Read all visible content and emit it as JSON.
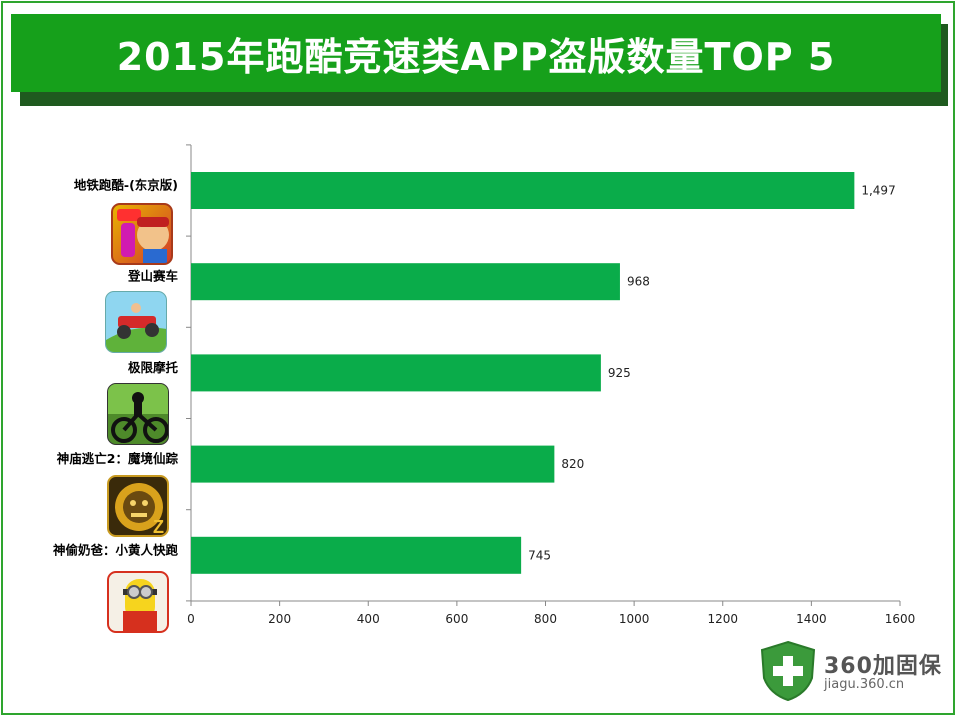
{
  "title": "2015年跑酷竞速类APP盗版数量TOP 5",
  "chart_data": {
    "type": "bar",
    "orientation": "horizontal",
    "categories": [
      "地铁跑酷-(东京版)",
      "登山赛车",
      "极限摩托",
      "神庙逃亡2：魔境仙踪",
      "神偷奶爸：小黄人快跑"
    ],
    "values": [
      1497,
      968,
      925,
      820,
      745
    ],
    "value_labels": [
      "1,497",
      "968",
      "925",
      "820",
      "745"
    ],
    "x_ticks": [
      "0",
      "200",
      "400",
      "600",
      "800",
      "1000",
      "1200",
      "1400",
      "1600"
    ],
    "xlim": [
      0,
      1600
    ],
    "bar_color": "#0aac4a",
    "grid": false,
    "legend": "none"
  },
  "icons": [
    "subway-surfers-icon",
    "hill-climb-racing-icon",
    "bike-race-icon",
    "temple-run-oz-icon",
    "minion-rush-icon"
  ],
  "brand": {
    "name": "360加固保",
    "url": "jiagu.360.cn",
    "shield_color": "#3b9a3b"
  }
}
